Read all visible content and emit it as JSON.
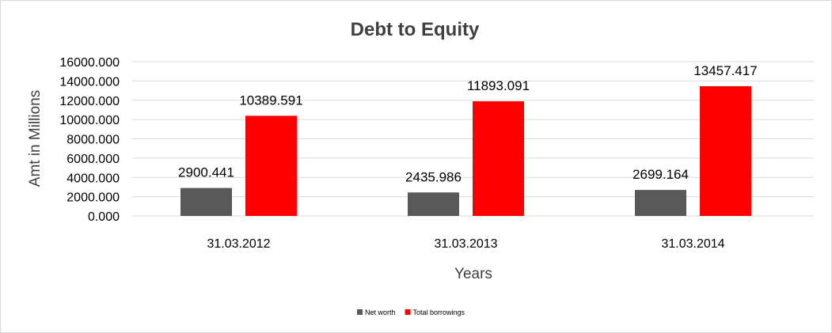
{
  "chart_data": {
    "type": "bar",
    "title": "Debt to Equity",
    "xlabel": "Years",
    "ylabel": "Amt in Millions",
    "categories": [
      "31.03.2012",
      "31.03.2013",
      "31.03.2014"
    ],
    "series": [
      {
        "name": "Net worth",
        "values": [
          2900.441,
          2435.986,
          2699.164
        ],
        "color": "#595959"
      },
      {
        "name": "Total borrowings",
        "values": [
          10389.591,
          11893.091,
          13457.417
        ],
        "color": "#ff0000"
      }
    ],
    "data_labels": [
      [
        "2900.441",
        "2435.986",
        "2699.164"
      ],
      [
        "10389.591",
        "11893.091",
        "13457.417"
      ]
    ],
    "ylim": [
      0,
      16000
    ],
    "yticks": [
      "0.000",
      "2000.000",
      "4000.000",
      "6000.000",
      "8000.000",
      "10000.000",
      "12000.000",
      "14000.000",
      "16000.000"
    ],
    "grid": true,
    "legend_position": "bottom"
  }
}
